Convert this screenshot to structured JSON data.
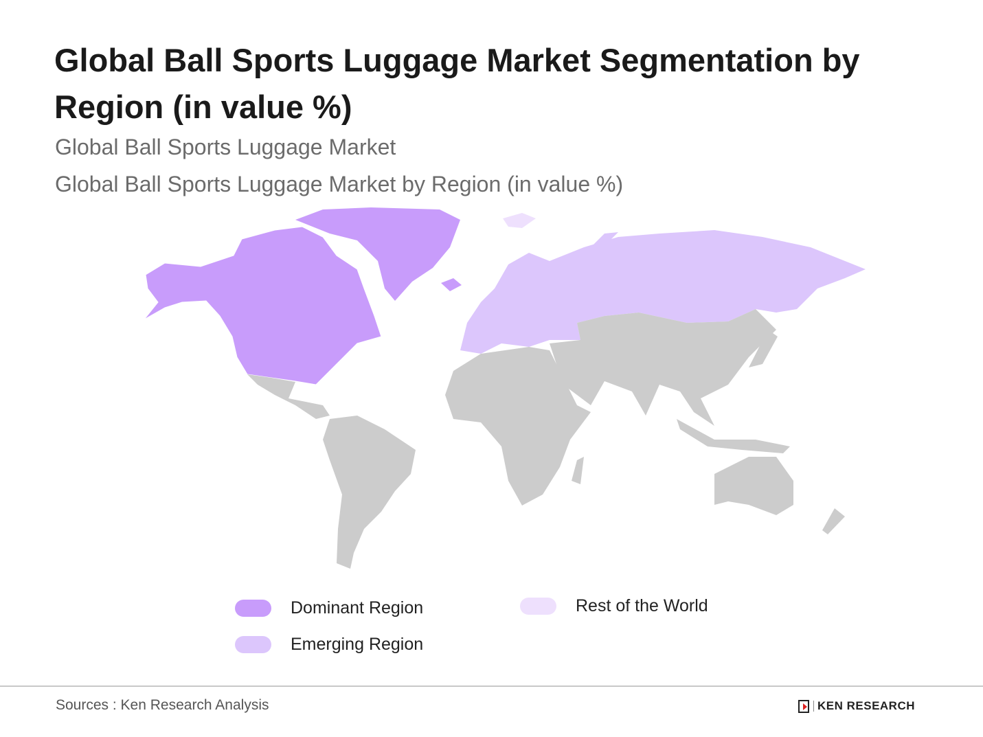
{
  "title": "Global Ball Sports Luggage Market Segmentation by Region (in value %)",
  "subtitle1": "Global Ball Sports Luggage Market",
  "subtitle2": "Global Ball Sports Luggage Market by Region (in value %)",
  "map": {
    "regions": [
      {
        "name": "North America",
        "category": "Dominant Region"
      },
      {
        "name": "Europe",
        "category": "Emerging Region"
      },
      {
        "name": "Rest of the World",
        "category": "Rest of the World"
      }
    ],
    "colors": {
      "dominant": "#c89cfb",
      "emerging": "#dcc6fc",
      "rest": "#eee0fd",
      "land_other": "#cccccc"
    }
  },
  "legend": [
    {
      "label": "Dominant Region",
      "color": "#c89cfb"
    },
    {
      "label": "Emerging Region",
      "color": "#dcc6fc"
    },
    {
      "label": "Rest of the World",
      "color": "#eee0fd"
    }
  ],
  "footer": {
    "source": "Sources : Ken Research Analysis",
    "logo_text": "KEN RESEARCH"
  }
}
